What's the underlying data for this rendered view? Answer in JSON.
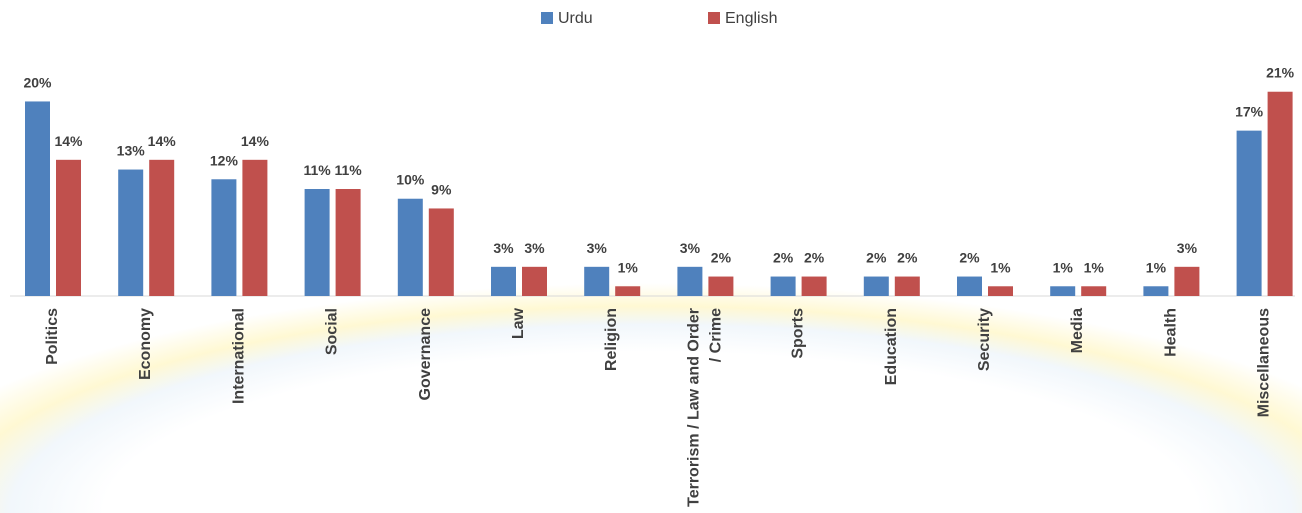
{
  "chart_data": {
    "type": "bar",
    "categories": [
      "Politics",
      "Economy",
      "International",
      "Social",
      "Governance",
      "Law",
      "Religion",
      "Terrorism / Law and Order / Crime",
      "Sports",
      "Education",
      "Security",
      "Media",
      "Health",
      "Miscellaneous"
    ],
    "series": [
      {
        "name": "Urdu",
        "color": "#4f81bd",
        "values": [
          20,
          13,
          12,
          11,
          10,
          3,
          3,
          3,
          2,
          2,
          2,
          1,
          1,
          17
        ],
        "value_labels": [
          "20%",
          "13%",
          "12%",
          "11%",
          "10%",
          "3%",
          "3%",
          "3%",
          "2%",
          "2%",
          "2%",
          "1%",
          "1%",
          "17%"
        ]
      },
      {
        "name": "English",
        "color": "#c0504d",
        "values": [
          14,
          14,
          14,
          11,
          9,
          3,
          1,
          2,
          2,
          2,
          1,
          1,
          3,
          21
        ],
        "value_labels": [
          "14%",
          "14%",
          "14%",
          "11%",
          "9%",
          "3%",
          "1%",
          "2%",
          "2%",
          "2%",
          "1%",
          "1%",
          "3%",
          "21%"
        ]
      }
    ],
    "ylim": [
      0,
      22
    ],
    "legend": "top"
  }
}
